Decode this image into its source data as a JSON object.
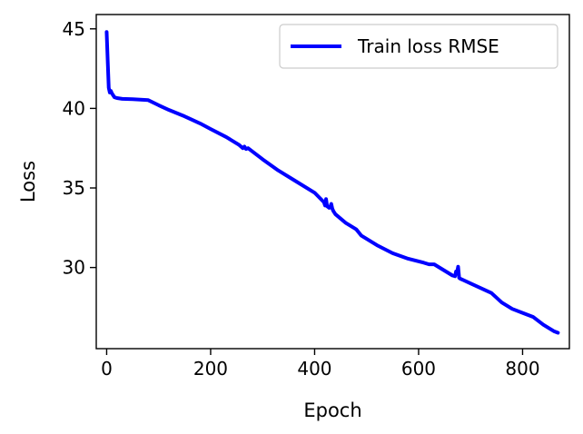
{
  "chart_data": {
    "type": "line",
    "title": "",
    "xlabel": "Epoch",
    "ylabel": "Loss",
    "xlim": [
      -20,
      890
    ],
    "ylim": [
      24.9,
      45.9
    ],
    "xticks": [
      0,
      200,
      400,
      600,
      800
    ],
    "yticks": [
      30,
      35,
      40,
      45
    ],
    "grid": false,
    "legend_position": "top-right",
    "series": [
      {
        "name": "Train loss RMSE",
        "color": "#0000ff",
        "x": [
          0,
          2,
          4,
          6,
          8,
          10,
          12,
          15,
          20,
          30,
          50,
          80,
          100,
          120,
          150,
          180,
          200,
          230,
          255,
          262,
          265,
          268,
          272,
          278,
          300,
          330,
          360,
          400,
          418,
          420,
          422,
          424,
          426,
          428,
          430,
          432,
          434,
          436,
          440,
          460,
          480,
          490,
          520,
          550,
          580,
          610,
          620,
          630,
          650,
          665,
          670,
          672,
          674,
          676,
          678,
          680,
          700,
          720,
          740,
          760,
          780,
          800,
          820,
          840,
          860,
          868
        ],
        "y": [
          44.8,
          43.0,
          41.3,
          41.0,
          41.1,
          40.95,
          40.85,
          40.7,
          40.65,
          40.6,
          40.58,
          40.52,
          40.2,
          39.9,
          39.5,
          39.05,
          38.7,
          38.2,
          37.7,
          37.5,
          37.6,
          37.45,
          37.5,
          37.35,
          36.8,
          36.1,
          35.5,
          34.7,
          34.1,
          33.9,
          34.3,
          33.85,
          33.8,
          33.75,
          33.8,
          34.0,
          33.7,
          33.55,
          33.35,
          32.8,
          32.4,
          32.0,
          31.4,
          30.9,
          30.55,
          30.3,
          30.2,
          30.2,
          29.8,
          29.5,
          29.45,
          29.75,
          29.7,
          30.05,
          29.35,
          29.3,
          29.0,
          28.7,
          28.4,
          27.8,
          27.4,
          27.15,
          26.9,
          26.4,
          26.0,
          25.9
        ]
      }
    ]
  }
}
